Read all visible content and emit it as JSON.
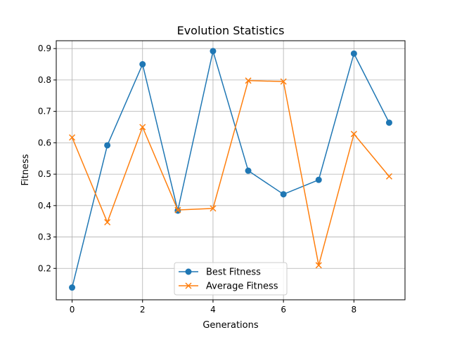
{
  "chart_data": {
    "type": "line",
    "title": "Evolution Statistics",
    "xlabel": "Generations",
    "ylabel": "Fitness",
    "x": [
      0,
      1,
      2,
      3,
      4,
      5,
      6,
      7,
      8,
      9
    ],
    "xlim": [
      -0.45,
      9.45
    ],
    "ylim": [
      0.1,
      0.925
    ],
    "xticks": [
      0,
      2,
      4,
      6,
      8
    ],
    "yticks": [
      0.2,
      0.3,
      0.4,
      0.5,
      0.6,
      0.7,
      0.8,
      0.9
    ],
    "grid": true,
    "legend_position": "lower-center",
    "series": [
      {
        "name": "Best Fitness",
        "color": "#1f77b4",
        "marker": "circle",
        "values": [
          0.139,
          0.592,
          0.85,
          0.384,
          0.892,
          0.511,
          0.436,
          0.482,
          0.884,
          0.664
        ]
      },
      {
        "name": "Average Fitness",
        "color": "#ff7f0e",
        "marker": "x",
        "values": [
          0.617,
          0.347,
          0.65,
          0.386,
          0.391,
          0.798,
          0.795,
          0.21,
          0.628,
          0.493
        ]
      }
    ]
  }
}
